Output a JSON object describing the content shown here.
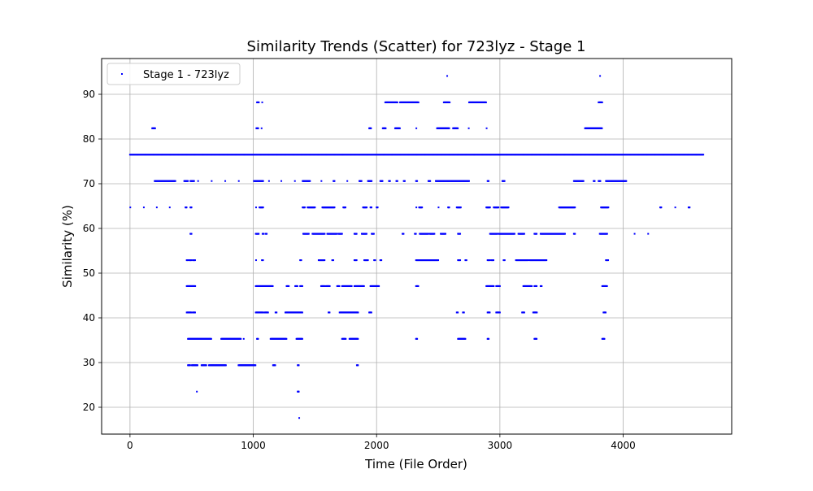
{
  "chart_data": {
    "type": "scatter",
    "title": "Similarity Trends (Scatter) for 723lyz - Stage 1",
    "xlabel": "Time (File Order)",
    "ylabel": "Similarity (%)",
    "xlim": [
      -230,
      4880
    ],
    "ylim": [
      14,
      98
    ],
    "xticks": [
      0,
      1000,
      2000,
      3000,
      4000
    ],
    "yticks": [
      20,
      30,
      40,
      50,
      60,
      70,
      80,
      90
    ],
    "grid": true,
    "legend_position": "top-left",
    "series": [
      {
        "name": "Stage 1 - 723lyz",
        "color": "#0000ff",
        "baseline": {
          "y": 76.5,
          "x_from": 0,
          "x_to": 4650,
          "step": 6
        },
        "segments": [
          {
            "y": 94.1,
            "x": [
              [
                2570,
                2575
              ],
              [
                3810,
                3815
              ]
            ]
          },
          {
            "y": 88.2,
            "x": [
              [
                1030,
                1045
              ],
              [
                1070,
                1075
              ],
              [
                2070,
                2170
              ],
              [
                2190,
                2340
              ],
              [
                2545,
                2595
              ],
              [
                2750,
                2890
              ],
              [
                3800,
                3830
              ]
            ]
          },
          {
            "y": 82.4,
            "x": [
              [
                180,
                205
              ],
              [
                1025,
                1040
              ],
              [
                1065,
                1070
              ],
              [
                1940,
                1955
              ],
              [
                2050,
                2075
              ],
              [
                2150,
                2190
              ],
              [
                2320,
                2325
              ],
              [
                2490,
                2590
              ],
              [
                2620,
                2660
              ],
              [
                2745,
                2750
              ],
              [
                2890,
                2895
              ],
              [
                3690,
                3830
              ]
            ]
          },
          {
            "y": 70.6,
            "x": [
              [
                200,
                370
              ],
              [
                440,
                470
              ],
              [
                490,
                520
              ],
              [
                550,
                555
              ],
              [
                660,
                665
              ],
              [
                770,
                775
              ],
              [
                880,
                885
              ],
              [
                1005,
                1080
              ],
              [
                1125,
                1130
              ],
              [
                1225,
                1230
              ],
              [
                1335,
                1340
              ],
              [
                1400,
                1460
              ],
              [
                1550,
                1555
              ],
              [
                1650,
                1660
              ],
              [
                1760,
                1765
              ],
              [
                1860,
                1880
              ],
              [
                1930,
                1960
              ],
              [
                2030,
                2050
              ],
              [
                2100,
                2110
              ],
              [
                2160,
                2170
              ],
              [
                2220,
                2230
              ],
              [
                2320,
                2330
              ],
              [
                2420,
                2435
              ],
              [
                2480,
                2750
              ],
              [
                2900,
                2910
              ],
              [
                3020,
                3040
              ],
              [
                3600,
                3680
              ],
              [
                3760,
                3770
              ],
              [
                3800,
                3815
              ],
              [
                3860,
                4025
              ]
            ]
          },
          {
            "y": 64.7,
            "x": [
              [
                0,
                5
              ],
              [
                110,
                115
              ],
              [
                215,
                220
              ],
              [
                320,
                325
              ],
              [
                450,
                460
              ],
              [
                490,
                500
              ],
              [
                1020,
                1025
              ],
              [
                1050,
                1080
              ],
              [
                1400,
                1420
              ],
              [
                1440,
                1500
              ],
              [
                1560,
                1660
              ],
              [
                1730,
                1750
              ],
              [
                1890,
                1920
              ],
              [
                1950,
                1960
              ],
              [
                2000,
                2010
              ],
              [
                2320,
                2325
              ],
              [
                2345,
                2370
              ],
              [
                2500,
                2505
              ],
              [
                2580,
                2590
              ],
              [
                2650,
                2685
              ],
              [
                2890,
                2920
              ],
              [
                2950,
                2990
              ],
              [
                3010,
                3070
              ],
              [
                3480,
                3610
              ],
              [
                3820,
                3880
              ],
              [
                4300,
                4310
              ],
              [
                4420,
                4425
              ],
              [
                4530,
                4540
              ]
            ]
          },
          {
            "y": 58.8,
            "x": [
              [
                490,
                500
              ],
              [
                1020,
                1045
              ],
              [
                1075,
                1085
              ],
              [
                1100,
                1110
              ],
              [
                1405,
                1450
              ],
              [
                1480,
                1580
              ],
              [
                1600,
                1680
              ],
              [
                1690,
                1720
              ],
              [
                1820,
                1840
              ],
              [
                1880,
                1920
              ],
              [
                1960,
                1980
              ],
              [
                2210,
                2220
              ],
              [
                2310,
                2320
              ],
              [
                2350,
                2420
              ],
              [
                2430,
                2470
              ],
              [
                2520,
                2560
              ],
              [
                2660,
                2680
              ],
              [
                2920,
                2980
              ],
              [
                2990,
                3120
              ],
              [
                3150,
                3200
              ],
              [
                3280,
                3300
              ],
              [
                3330,
                3530
              ],
              [
                3600,
                3610
              ],
              [
                3810,
                3870
              ],
              [
                4090,
                4095
              ],
              [
                4200,
                4205
              ]
            ]
          },
          {
            "y": 52.9,
            "x": [
              [
                460,
                470
              ],
              [
                480,
                500
              ],
              [
                510,
                530
              ],
              [
                1020,
                1025
              ],
              [
                1070,
                1080
              ],
              [
                1380,
                1390
              ],
              [
                1530,
                1580
              ],
              [
                1640,
                1650
              ],
              [
                1820,
                1840
              ],
              [
                1900,
                1930
              ],
              [
                1980,
                1990
              ],
              [
                2030,
                2040
              ],
              [
                2320,
                2500
              ],
              [
                2660,
                2680
              ],
              [
                2720,
                2730
              ],
              [
                2900,
                2920
              ],
              [
                2930,
                2950
              ],
              [
                3030,
                3040
              ],
              [
                3130,
                3230
              ],
              [
                3240,
                3380
              ],
              [
                3860,
                3880
              ]
            ]
          },
          {
            "y": 47.1,
            "x": [
              [
                460,
                530
              ],
              [
                1020,
                1160
              ],
              [
                1270,
                1290
              ],
              [
                1340,
                1360
              ],
              [
                1380,
                1400
              ],
              [
                1550,
                1580
              ],
              [
                1590,
                1620
              ],
              [
                1680,
                1700
              ],
              [
                1720,
                1800
              ],
              [
                1820,
                1900
              ],
              [
                1950,
                2020
              ],
              [
                2320,
                2340
              ],
              [
                2890,
                2950
              ],
              [
                2970,
                3000
              ],
              [
                3190,
                3260
              ],
              [
                3280,
                3300
              ],
              [
                3330,
                3340
              ],
              [
                3830,
                3870
              ]
            ]
          },
          {
            "y": 41.2,
            "x": [
              [
                460,
                500
              ],
              [
                510,
                530
              ],
              [
                1020,
                1080
              ],
              [
                1090,
                1120
              ],
              [
                1180,
                1190
              ],
              [
                1260,
                1400
              ],
              [
                1610,
                1620
              ],
              [
                1700,
                1850
              ],
              [
                1940,
                1960
              ],
              [
                2650,
                2660
              ],
              [
                2700,
                2710
              ],
              [
                2900,
                2920
              ],
              [
                2970,
                3000
              ],
              [
                3180,
                3200
              ],
              [
                3270,
                3300
              ],
              [
                3840,
                3860
              ]
            ]
          },
          {
            "y": 35.3,
            "x": [
              [
                470,
                660
              ],
              [
                740,
                900
              ],
              [
                920,
                925
              ],
              [
                1030,
                1040
              ],
              [
                1140,
                1270
              ],
              [
                1350,
                1400
              ],
              [
                1720,
                1750
              ],
              [
                1780,
                1850
              ],
              [
                2320,
                2330
              ],
              [
                2660,
                2720
              ],
              [
                2900,
                2910
              ],
              [
                3280,
                3300
              ],
              [
                3830,
                3850
              ]
            ]
          },
          {
            "y": 29.4,
            "x": [
              [
                470,
                490
              ],
              [
                500,
                550
              ],
              [
                580,
                620
              ],
              [
                640,
                780
              ],
              [
                880,
                1020
              ],
              [
                1160,
                1180
              ],
              [
                1360,
                1370
              ],
              [
                1840,
                1850
              ]
            ]
          },
          {
            "y": 23.5,
            "x": [
              [
                540,
                545
              ],
              [
                1360,
                1370
              ]
            ]
          },
          {
            "y": 17.6,
            "x": [
              [
                1370,
                1375
              ]
            ]
          }
        ]
      }
    ]
  }
}
